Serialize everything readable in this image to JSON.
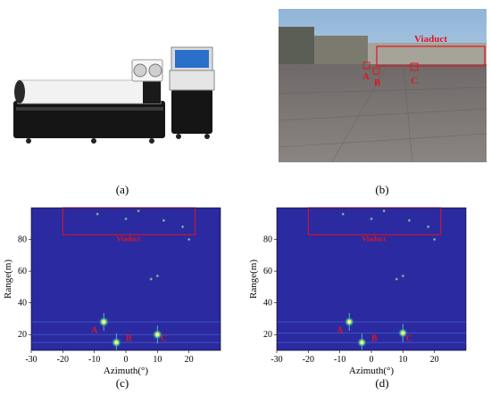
{
  "panels": {
    "a": {
      "label": "(a)"
    },
    "b": {
      "label": "(b)",
      "annotations": [
        "Viaduct",
        "A",
        "B",
        "C"
      ]
    },
    "c": {
      "label": "(c)"
    },
    "d": {
      "label": "(d)"
    }
  },
  "chart_data": [
    {
      "type": "heatmap",
      "panel": "c",
      "xlabel": "Azimuth(°)",
      "ylabel": "Range(m)",
      "xlim": [
        -30,
        30
      ],
      "ylim": [
        10,
        100
      ],
      "xticks": [
        "-30",
        "-20",
        "-10",
        "0",
        "10",
        "20"
      ],
      "yticks": [
        "20",
        "40",
        "60",
        "80"
      ],
      "annotations": [
        "Viaduct",
        "A",
        "B",
        "C"
      ],
      "targets": [
        {
          "name": "A",
          "azimuth": -7,
          "range": 28,
          "intensity": 1.0
        },
        {
          "name": "B",
          "azimuth": -3,
          "range": 15,
          "intensity": 0.9
        },
        {
          "name": "C",
          "azimuth": 10,
          "range": 20,
          "intensity": 0.95
        }
      ],
      "viaduct_region": {
        "azimuth": [
          -20,
          22
        ],
        "range": [
          83,
          100
        ]
      }
    },
    {
      "type": "heatmap",
      "panel": "d",
      "xlabel": "Azimuth(°)",
      "ylabel": "Range(m)",
      "xlim": [
        -30,
        30
      ],
      "ylim": [
        10,
        100
      ],
      "xticks": [
        "-30",
        "-20",
        "-10",
        "0",
        "10",
        "20"
      ],
      "yticks": [
        "20",
        "40",
        "60",
        "80"
      ],
      "annotations": [
        "Viaduct",
        "A",
        "B",
        "C"
      ],
      "targets": [
        {
          "name": "A",
          "azimuth": -7,
          "range": 28,
          "intensity": 0.9
        },
        {
          "name": "B",
          "azimuth": -3,
          "range": 15,
          "intensity": 0.8
        },
        {
          "name": "C",
          "azimuth": 10,
          "range": 21,
          "intensity": 0.85
        }
      ],
      "viaduct_region": {
        "azimuth": [
          -20,
          22
        ],
        "range": [
          83,
          100
        ]
      }
    }
  ]
}
